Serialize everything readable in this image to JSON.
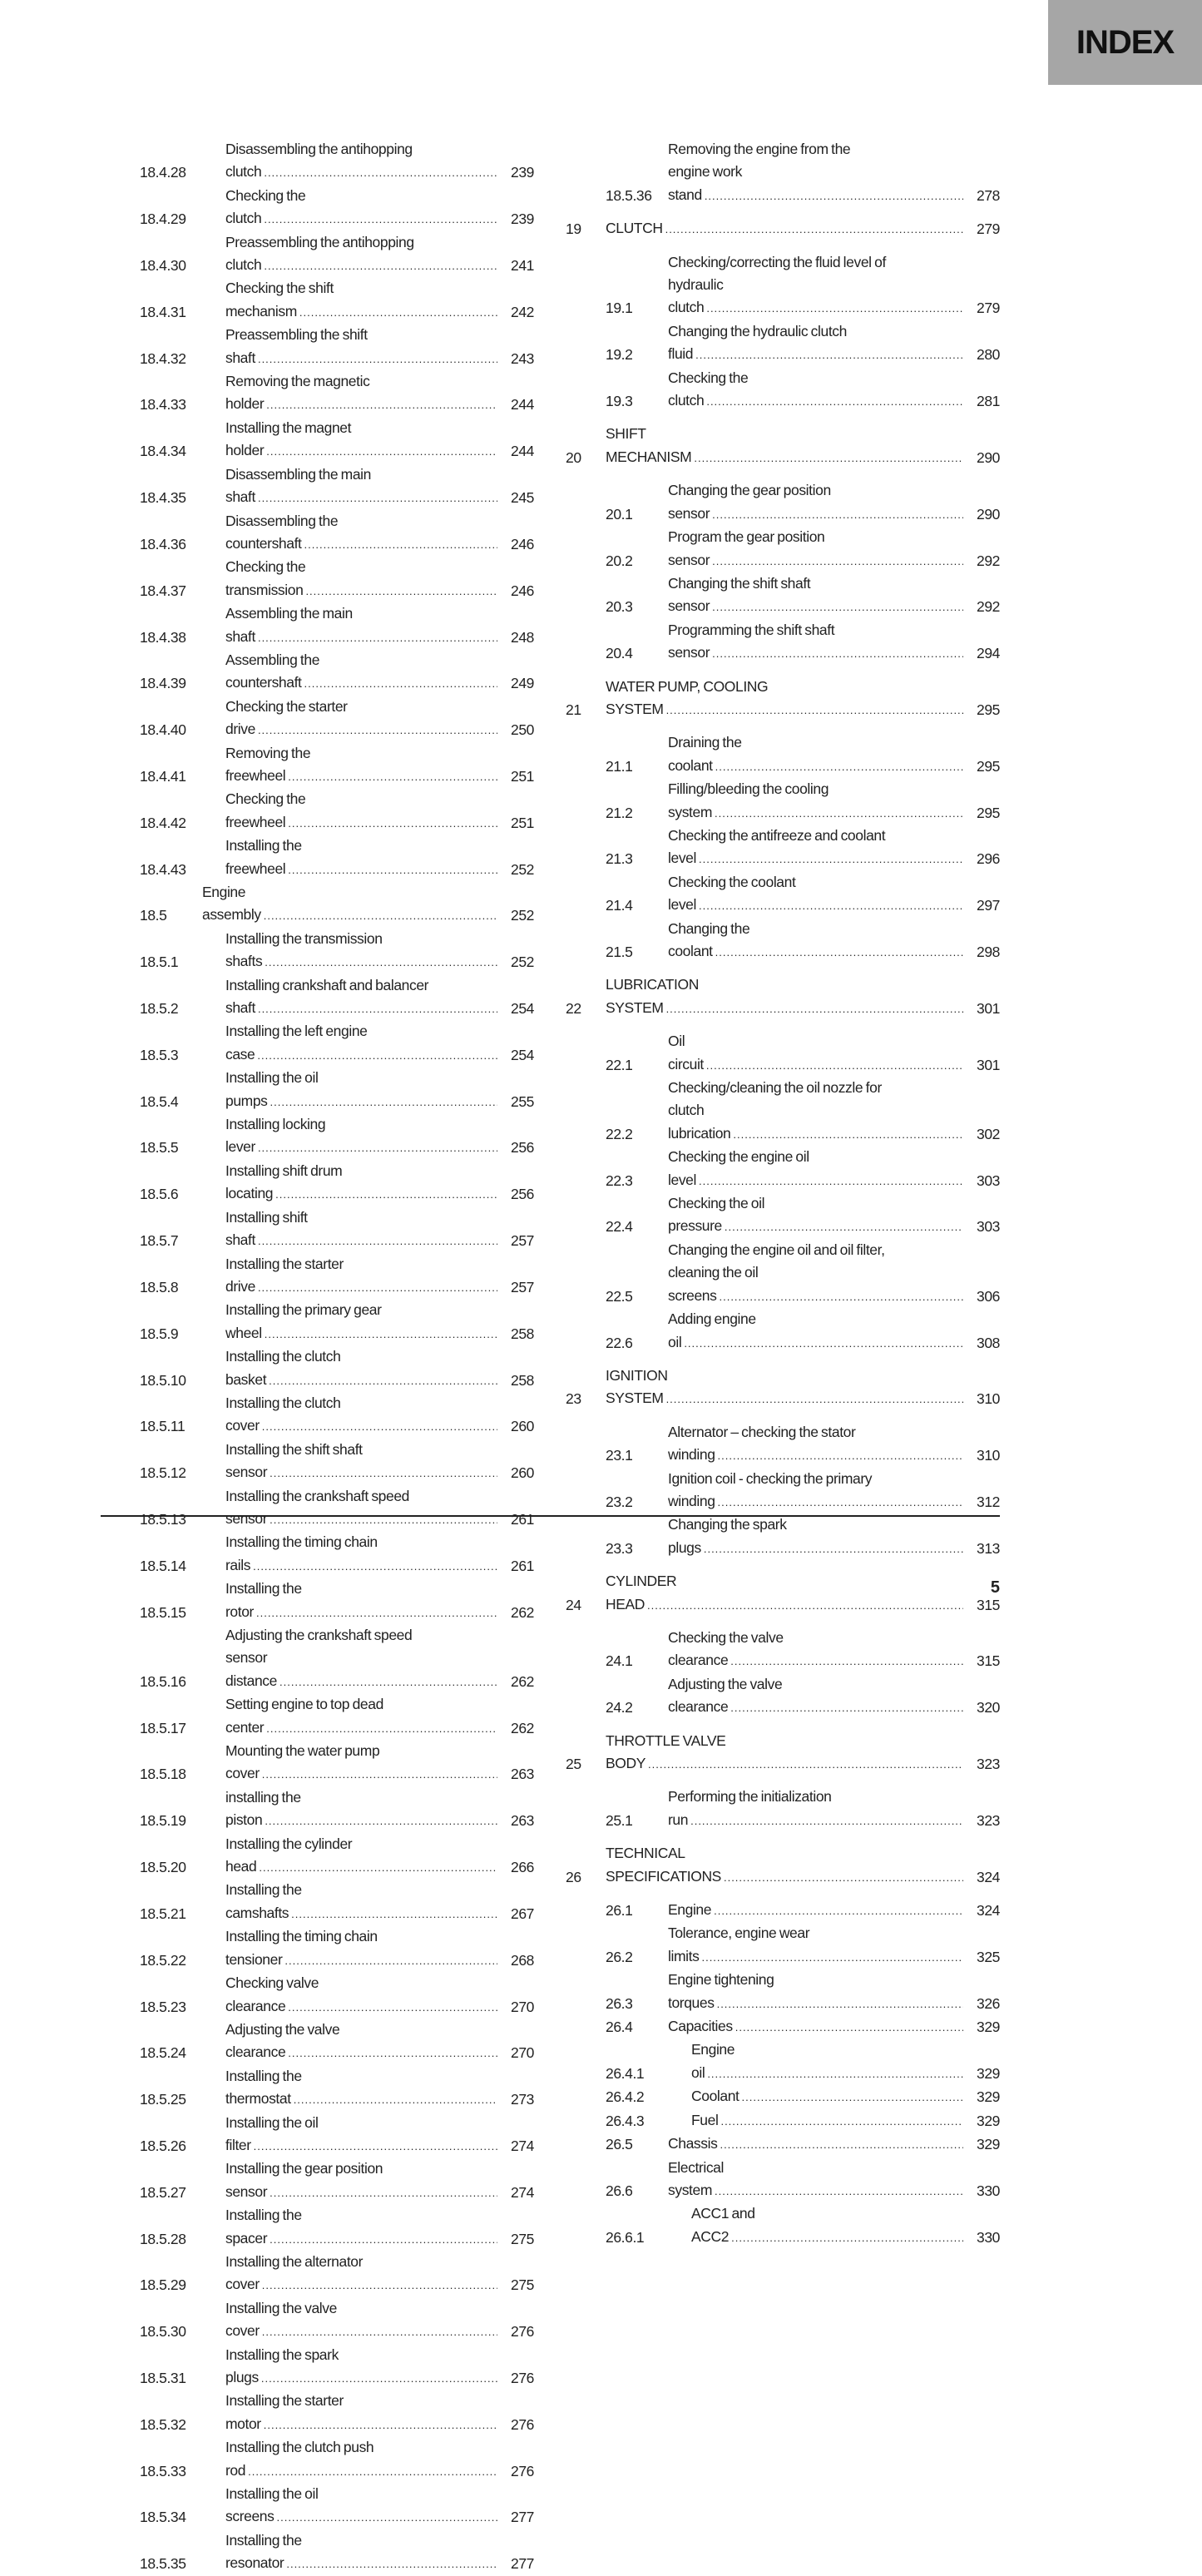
{
  "header": {
    "tab_label": "INDEX"
  },
  "left_entries": [
    {
      "num": "18.4.28",
      "title": "Disassembling the antihopping\nclutch",
      "page": "239",
      "level": "sub"
    },
    {
      "num": "18.4.29",
      "title": "Checking the clutch",
      "page": "239",
      "level": "sub"
    },
    {
      "num": "18.4.30",
      "title": "Preassembling the antihopping\nclutch",
      "page": "241",
      "level": "sub"
    },
    {
      "num": "18.4.31",
      "title": "Checking the shift mechanism",
      "page": "242",
      "level": "sub"
    },
    {
      "num": "18.4.32",
      "title": "Preassembling the shift shaft",
      "page": "243",
      "level": "sub"
    },
    {
      "num": "18.4.33",
      "title": "Removing the magnetic holder",
      "page": "244",
      "level": "sub"
    },
    {
      "num": "18.4.34",
      "title": "Installing the magnet holder",
      "page": "244",
      "level": "sub"
    },
    {
      "num": "18.4.35",
      "title": "Disassembling the main shaft",
      "page": "245",
      "level": "sub"
    },
    {
      "num": "18.4.36",
      "title": "Disassembling the countershaft",
      "page": "246",
      "level": "sub"
    },
    {
      "num": "18.4.37",
      "title": "Checking the transmission",
      "page": "246",
      "level": "sub"
    },
    {
      "num": "18.4.38",
      "title": "Assembling the main shaft",
      "page": "248",
      "level": "sub"
    },
    {
      "num": "18.4.39",
      "title": "Assembling the countershaft",
      "page": "249",
      "level": "sub"
    },
    {
      "num": "18.4.40",
      "title": "Checking the starter drive",
      "page": "250",
      "level": "sub"
    },
    {
      "num": "18.4.41",
      "title": "Removing the freewheel",
      "page": "251",
      "level": "sub"
    },
    {
      "num": "18.4.42",
      "title": "Checking the freewheel",
      "page": "251",
      "level": "sub"
    },
    {
      "num": "18.4.43",
      "title": "Installing the freewheel",
      "page": "252",
      "level": "sub"
    },
    {
      "num": "18.5",
      "title": "Engine assembly",
      "page": "252",
      "level": "sec"
    },
    {
      "num": "18.5.1",
      "title": "Installing the transmission shafts",
      "page": "252",
      "level": "sub"
    },
    {
      "num": "18.5.2",
      "title": "Installing crankshaft and balancer\nshaft",
      "page": "254",
      "level": "sub"
    },
    {
      "num": "18.5.3",
      "title": "Installing the left engine case",
      "page": "254",
      "level": "sub"
    },
    {
      "num": "18.5.4",
      "title": "Installing the oil pumps",
      "page": "255",
      "level": "sub"
    },
    {
      "num": "18.5.5",
      "title": "Installing locking lever",
      "page": "256",
      "level": "sub"
    },
    {
      "num": "18.5.6",
      "title": "Installing shift drum locating",
      "page": "256",
      "level": "sub"
    },
    {
      "num": "18.5.7",
      "title": "Installing shift shaft",
      "page": "257",
      "level": "sub"
    },
    {
      "num": "18.5.8",
      "title": "Installing the starter drive",
      "page": "257",
      "level": "sub"
    },
    {
      "num": "18.5.9",
      "title": "Installing the primary gear wheel",
      "page": "258",
      "level": "sub"
    },
    {
      "num": "18.5.10",
      "title": "Installing the clutch basket",
      "page": "258",
      "level": "sub"
    },
    {
      "num": "18.5.11",
      "title": "Installing the clutch cover",
      "page": "260",
      "level": "sub"
    },
    {
      "num": "18.5.12",
      "title": "Installing the shift shaft sensor",
      "page": "260",
      "level": "sub"
    },
    {
      "num": "18.5.13",
      "title": "Installing the crankshaft speed\nsensor",
      "page": "261",
      "level": "sub"
    },
    {
      "num": "18.5.14",
      "title": "Installing the timing chain rails",
      "page": "261",
      "level": "sub"
    },
    {
      "num": "18.5.15",
      "title": "Installing the rotor",
      "page": "262",
      "level": "sub"
    },
    {
      "num": "18.5.16",
      "title": "Adjusting the crankshaft speed\nsensor distance",
      "page": "262",
      "level": "sub"
    },
    {
      "num": "18.5.17",
      "title": "Setting engine to top dead center",
      "page": "262",
      "level": "sub"
    },
    {
      "num": "18.5.18",
      "title": "Mounting the water pump cover",
      "page": "263",
      "level": "sub"
    },
    {
      "num": "18.5.19",
      "title": "installing the piston",
      "page": "263",
      "level": "sub"
    },
    {
      "num": "18.5.20",
      "title": "Installing the cylinder head",
      "page": "266",
      "level": "sub"
    },
    {
      "num": "18.5.21",
      "title": "Installing the camshafts",
      "page": "267",
      "level": "sub"
    },
    {
      "num": "18.5.22",
      "title": "Installing the timing chain\ntensioner",
      "page": "268",
      "level": "sub"
    },
    {
      "num": "18.5.23",
      "title": "Checking valve clearance",
      "page": "270",
      "level": "sub"
    },
    {
      "num": "18.5.24",
      "title": "Adjusting the valve clearance",
      "page": "270",
      "level": "sub"
    },
    {
      "num": "18.5.25",
      "title": "Installing the thermostat",
      "page": "273",
      "level": "sub"
    },
    {
      "num": "18.5.26",
      "title": "Installing the oil filter",
      "page": "274",
      "level": "sub"
    },
    {
      "num": "18.5.27",
      "title": "Installing the gear position sensor",
      "page": "274",
      "level": "sub"
    },
    {
      "num": "18.5.28",
      "title": "Installing the spacer",
      "page": "275",
      "level": "sub"
    },
    {
      "num": "18.5.29",
      "title": "Installing the alternator cover",
      "page": "275",
      "level": "sub"
    },
    {
      "num": "18.5.30",
      "title": "Installing the valve cover",
      "page": "276",
      "level": "sub"
    },
    {
      "num": "18.5.31",
      "title": "Installing the spark plugs",
      "page": "276",
      "level": "sub"
    },
    {
      "num": "18.5.32",
      "title": "Installing the starter motor",
      "page": "276",
      "level": "sub"
    },
    {
      "num": "18.5.33",
      "title": "Installing the clutch push rod",
      "page": "276",
      "level": "sub"
    },
    {
      "num": "18.5.34",
      "title": "Installing the oil screens",
      "page": "277",
      "level": "sub"
    },
    {
      "num": "18.5.35",
      "title": "Installing the resonator",
      "page": "277",
      "level": "sub"
    }
  ],
  "right_entries": [
    {
      "num": "18.5.36",
      "title": "Removing the engine from the\nengine work stand",
      "page": "278",
      "level": "sub"
    },
    {
      "num": "19",
      "title": "CLUTCH",
      "page": "279",
      "level": "chapter"
    },
    {
      "num": "19.1",
      "title": "Checking/correcting the fluid level of\nhydraulic clutch",
      "page": "279",
      "level": "sub"
    },
    {
      "num": "19.2",
      "title": "Changing the hydraulic clutch fluid",
      "page": "280",
      "level": "sub"
    },
    {
      "num": "19.3",
      "title": "Checking the clutch",
      "page": "281",
      "level": "sub"
    },
    {
      "num": "20",
      "title": "SHIFT MECHANISM",
      "page": "290",
      "level": "chapter"
    },
    {
      "num": "20.1",
      "title": "Changing the gear position sensor",
      "page": "290",
      "level": "sub"
    },
    {
      "num": "20.2",
      "title": "Program the gear position sensor",
      "page": "292",
      "level": "sub"
    },
    {
      "num": "20.3",
      "title": "Changing the shift shaft sensor",
      "page": "292",
      "level": "sub"
    },
    {
      "num": "20.4",
      "title": "Programming the shift shaft sensor",
      "page": "294",
      "level": "sub"
    },
    {
      "num": "21",
      "title": "WATER PUMP, COOLING SYSTEM",
      "page": "295",
      "level": "chapter"
    },
    {
      "num": "21.1",
      "title": "Draining the coolant",
      "page": "295",
      "level": "sub"
    },
    {
      "num": "21.2",
      "title": "Filling/bleeding the cooling system",
      "page": "295",
      "level": "sub"
    },
    {
      "num": "21.3",
      "title": "Checking the antifreeze and coolant\nlevel",
      "page": "296",
      "level": "sub"
    },
    {
      "num": "21.4",
      "title": "Checking the coolant level",
      "page": "297",
      "level": "sub"
    },
    {
      "num": "21.5",
      "title": "Changing the coolant",
      "page": "298",
      "level": "sub"
    },
    {
      "num": "22",
      "title": "LUBRICATION SYSTEM",
      "page": "301",
      "level": "chapter"
    },
    {
      "num": "22.1",
      "title": "Oil circuit",
      "page": "301",
      "level": "sub"
    },
    {
      "num": "22.2",
      "title": "Checking/cleaning the oil nozzle for\nclutch lubrication",
      "page": "302",
      "level": "sub"
    },
    {
      "num": "22.3",
      "title": "Checking the engine oil level",
      "page": "303",
      "level": "sub"
    },
    {
      "num": "22.4",
      "title": "Checking the oil pressure",
      "page": "303",
      "level": "sub"
    },
    {
      "num": "22.5",
      "title": "Changing the engine oil and oil filter,\ncleaning the oil screens",
      "page": "306",
      "level": "sub"
    },
    {
      "num": "22.6",
      "title": "Adding engine oil",
      "page": "308",
      "level": "sub"
    },
    {
      "num": "23",
      "title": "IGNITION SYSTEM",
      "page": "310",
      "level": "chapter"
    },
    {
      "num": "23.1",
      "title": "Alternator – checking the stator\nwinding",
      "page": "310",
      "level": "sub"
    },
    {
      "num": "23.2",
      "title": "Ignition coil - checking the primary\nwinding",
      "page": "312",
      "level": "sub"
    },
    {
      "num": "23.3",
      "title": "Changing the spark plugs",
      "page": "313",
      "level": "sub"
    },
    {
      "num": "24",
      "title": "CYLINDER HEAD",
      "page": "315",
      "level": "chapter"
    },
    {
      "num": "24.1",
      "title": "Checking the valve clearance",
      "page": "315",
      "level": "sub"
    },
    {
      "num": "24.2",
      "title": "Adjusting the valve clearance",
      "page": "320",
      "level": "sub"
    },
    {
      "num": "25",
      "title": "THROTTLE VALVE BODY",
      "page": "323",
      "level": "chapter"
    },
    {
      "num": "25.1",
      "title": "Performing the initialization run",
      "page": "323",
      "level": "sub"
    },
    {
      "num": "26",
      "title": "TECHNICAL SPECIFICATIONS",
      "page": "324",
      "level": "chapter"
    },
    {
      "num": "26.1",
      "title": "Engine",
      "page": "324",
      "level": "sub"
    },
    {
      "num": "26.2",
      "title": "Tolerance, engine wear limits",
      "page": "325",
      "level": "sub"
    },
    {
      "num": "26.3",
      "title": "Engine tightening torques",
      "page": "326",
      "level": "sub"
    },
    {
      "num": "26.4",
      "title": "Capacities",
      "page": "329",
      "level": "sub"
    },
    {
      "num": "26.4.1",
      "title": "Engine oil",
      "page": "329",
      "level": "subsub"
    },
    {
      "num": "26.4.2",
      "title": "Coolant",
      "page": "329",
      "level": "subsub"
    },
    {
      "num": "26.4.3",
      "title": "Fuel",
      "page": "329",
      "level": "subsub"
    },
    {
      "num": "26.5",
      "title": "Chassis",
      "page": "329",
      "level": "sub"
    },
    {
      "num": "26.6",
      "title": "Electrical system",
      "page": "330",
      "level": "sub"
    },
    {
      "num": "26.6.1",
      "title": "ACC1 and ACC2",
      "page": "330",
      "level": "subsub"
    }
  ],
  "footer": {
    "page_number": "5"
  }
}
